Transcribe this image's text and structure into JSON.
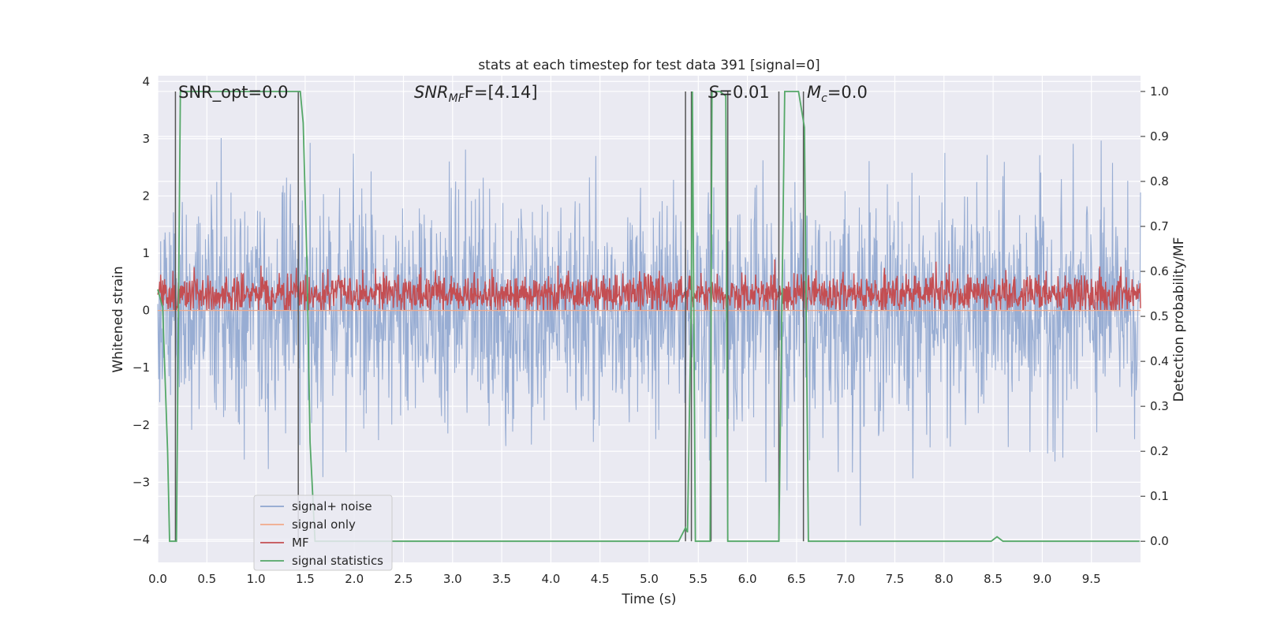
{
  "chart_data": {
    "type": "line",
    "title": "stats at each timestep for test data 391 [signal=0]",
    "xlabel": "Time (s)",
    "ylabel": "Whitened strain",
    "ylabel_right": "Detection probability/MF",
    "xlim": [
      0.0,
      10.0
    ],
    "ylim": [
      -4.4,
      4.1
    ],
    "ylim_right": [
      -0.047,
      1.035
    ],
    "xticks": [
      "0.0",
      "0.5",
      "1.0",
      "1.5",
      "2.0",
      "2.5",
      "3.0",
      "3.5",
      "4.0",
      "4.5",
      "5.0",
      "5.5",
      "6.0",
      "6.5",
      "7.0",
      "7.5",
      "8.0",
      "8.5",
      "9.0",
      "9.5"
    ],
    "yticks": [
      "4",
      "3",
      "2",
      "1",
      "0",
      "−1",
      "−2",
      "−3",
      "−4"
    ],
    "yticks_right": [
      "1.0",
      "0.9",
      "0.8",
      "0.7",
      "0.6",
      "0.5",
      "0.4",
      "0.3",
      "0.2",
      "0.1",
      "0.0"
    ],
    "grid": true,
    "legend_position": "lower-left",
    "annotations": {
      "snr_opt": "SNR_opt=0.0",
      "snr_mf_symbol": "SNR",
      "snr_mf_sub": "MF",
      "snr_mf_value": "F=[4.14]",
      "s_symbol": "S",
      "s_value": "=0.01",
      "mc_symbol": "M",
      "mc_sub": "c",
      "mc_value": "=0.0"
    },
    "series": [
      {
        "name": "signal+ noise",
        "color": "#8fa6cf",
        "kind": "noise",
        "amplitude_std": 1.0,
        "typical_max": 3.6,
        "min": -4.0
      },
      {
        "name": "signal only",
        "color": "#f0a98a",
        "kind": "flat",
        "value": 0.0
      },
      {
        "name": "MF",
        "color": "#c44e52",
        "kind": "noise_positive",
        "typical_range": [
          0.0,
          0.9
        ]
      },
      {
        "name": "signal statistics",
        "color": "#55a868",
        "axis": "right",
        "x": [
          0.0,
          0.05,
          0.1,
          0.12,
          0.19,
          0.23,
          0.28,
          1.45,
          1.48,
          1.52,
          1.55,
          1.6,
          5.3,
          5.37,
          5.39,
          5.43,
          5.44,
          5.47,
          5.55,
          5.62,
          5.64,
          5.66,
          5.72,
          5.78,
          5.8,
          5.82,
          5.84,
          6.32,
          6.38,
          6.48,
          6.52,
          6.58,
          6.62,
          6.65,
          8.4,
          8.48,
          8.54,
          8.6,
          9.99
        ],
        "y": [
          0.56,
          0.52,
          0.2,
          0.0,
          0.0,
          1.0,
          1.0,
          1.0,
          0.93,
          0.6,
          0.22,
          0.0,
          0.0,
          0.03,
          0.02,
          0.55,
          1.0,
          0.0,
          0.0,
          0.0,
          1.0,
          1.0,
          1.0,
          0.99,
          0.0,
          0.0,
          0.0,
          0.0,
          1.0,
          1.0,
          1.0,
          0.92,
          0.0,
          0.0,
          0.0,
          0.0,
          0.01,
          0.0,
          0.0
        ]
      }
    ],
    "vertical_markers_x": [
      0.18,
      1.43,
      5.37,
      5.43,
      5.63,
      5.8,
      6.32,
      6.57
    ]
  }
}
